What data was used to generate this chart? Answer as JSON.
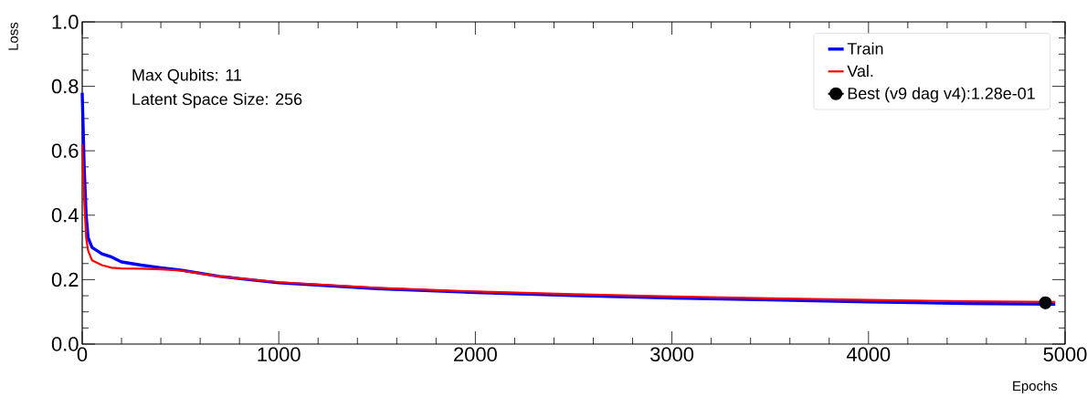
{
  "chart_data": {
    "type": "line",
    "xlabel": "Epochs",
    "ylabel": "Loss",
    "annotations": [
      "Max Qubits: 11",
      "Latent Space Size: 256"
    ],
    "xlim": [
      0,
      5000
    ],
    "ylim": [
      0,
      1.0
    ],
    "xticks": [
      0,
      1000,
      2000,
      3000,
      4000,
      5000
    ],
    "yticks": [
      {
        "value": 0,
        "label": "0.0"
      },
      0.2,
      0.4,
      0.6,
      0.8,
      {
        "value": 1.0,
        "label": "1.0"
      }
    ],
    "grid": false,
    "legend": "top right",
    "series": [
      {
        "name": "Train",
        "color": "#0000ff",
        "x": [
          0,
          10,
          20,
          30,
          50,
          100,
          150,
          200,
          300,
          400,
          500,
          700,
          1000,
          1500,
          2000,
          2500,
          3000,
          3500,
          4000,
          4500,
          4950
        ],
        "values": [
          0.78,
          0.55,
          0.4,
          0.33,
          0.3,
          0.28,
          0.27,
          0.255,
          0.245,
          0.237,
          0.23,
          0.21,
          0.19,
          0.172,
          0.16,
          0.151,
          0.143,
          0.137,
          0.131,
          0.126,
          0.124
        ]
      },
      {
        "name": "Val.",
        "color": "#ff0000",
        "x": [
          0,
          10,
          20,
          30,
          50,
          100,
          150,
          200,
          300,
          400,
          500,
          700,
          1000,
          1500,
          2000,
          2500,
          3000,
          3500,
          4000,
          4500,
          4950
        ],
        "values": [
          0.62,
          0.45,
          0.33,
          0.29,
          0.26,
          0.245,
          0.237,
          0.235,
          0.234,
          0.232,
          0.228,
          0.21,
          0.192,
          0.175,
          0.163,
          0.155,
          0.148,
          0.142,
          0.137,
          0.133,
          0.131
        ]
      },
      {
        "name": "Best (v9 dag v4):1.28e-01",
        "type": "scatter",
        "marker": "circle",
        "color": "#000000",
        "x": [
          4900
        ],
        "values": [
          0.128
        ]
      }
    ]
  }
}
